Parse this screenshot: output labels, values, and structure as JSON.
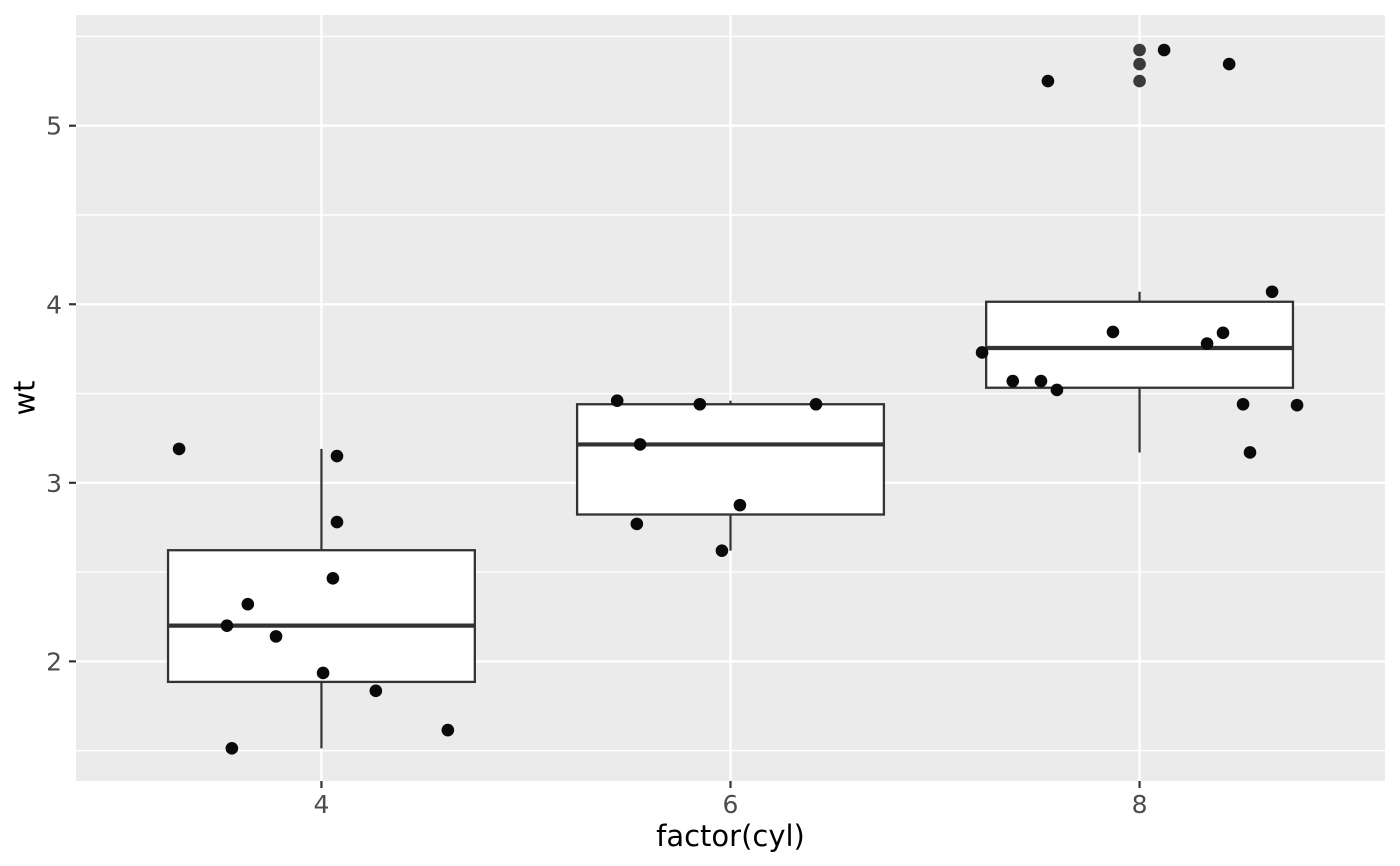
{
  "chart_data": {
    "type": "boxplot",
    "title": "",
    "xlabel": "factor(cyl)",
    "ylabel": "wt",
    "x_domain": [
      0.4,
      3.6
    ],
    "y_domain": [
      1.33,
      5.62
    ],
    "x_ticks": [
      {
        "pos": 1,
        "label": "4"
      },
      {
        "pos": 2,
        "label": "6"
      },
      {
        "pos": 3,
        "label": "8"
      }
    ],
    "y_ticks": [
      {
        "pos": 2,
        "label": "2"
      },
      {
        "pos": 3,
        "label": "3"
      },
      {
        "pos": 4,
        "label": "4"
      },
      {
        "pos": 5,
        "label": "5"
      }
    ],
    "y_minor": [
      1.5,
      2.5,
      3.5,
      4.5,
      5.5
    ],
    "box_half_width": 0.375,
    "grid": true,
    "legend": "none",
    "groups": [
      {
        "label": "4",
        "pos": 1,
        "q1": 1.885,
        "median": 2.2,
        "q3": 2.6225,
        "whisker_low": 1.513,
        "whisker_high": 3.19,
        "outliers": [],
        "points": [
          {
            "wt": 3.19,
            "dx": -0.348
          },
          {
            "wt": 3.15,
            "dx": 0.038
          },
          {
            "wt": 2.78,
            "dx": 0.038
          },
          {
            "wt": 2.465,
            "dx": 0.028
          },
          {
            "wt": 2.32,
            "dx": -0.18
          },
          {
            "wt": 2.2,
            "dx": -0.231
          },
          {
            "wt": 2.14,
            "dx": -0.111
          },
          {
            "wt": 1.935,
            "dx": 0.004
          },
          {
            "wt": 1.835,
            "dx": 0.133
          },
          {
            "wt": 1.615,
            "dx": 0.309
          },
          {
            "wt": 1.513,
            "dx": -0.219
          }
        ]
      },
      {
        "label": "6",
        "pos": 2,
        "q1": 2.8225,
        "median": 3.215,
        "q3": 3.44,
        "whisker_low": 2.62,
        "whisker_high": 3.46,
        "outliers": [],
        "points": [
          {
            "wt": 3.46,
            "dx": -0.277
          },
          {
            "wt": 3.44,
            "dx": -0.075
          },
          {
            "wt": 3.44,
            "dx": 0.209
          },
          {
            "wt": 3.215,
            "dx": -0.221
          },
          {
            "wt": 2.875,
            "dx": 0.023
          },
          {
            "wt": 2.77,
            "dx": -0.229
          },
          {
            "wt": 2.62,
            "dx": -0.021
          }
        ]
      },
      {
        "label": "8",
        "pos": 3,
        "q1": 3.5325,
        "median": 3.755,
        "q3": 4.014,
        "whisker_low": 3.17,
        "whisker_high": 4.07,
        "outliers": [
          5.25,
          5.345,
          5.424
        ],
        "points": [
          {
            "wt": 5.424,
            "dx": 0.06
          },
          {
            "wt": 5.345,
            "dx": 0.219
          },
          {
            "wt": 5.25,
            "dx": -0.224
          },
          {
            "wt": 4.07,
            "dx": 0.324
          },
          {
            "wt": 3.845,
            "dx": -0.065
          },
          {
            "wt": 3.84,
            "dx": 0.204
          },
          {
            "wt": 3.78,
            "dx": 0.165
          },
          {
            "wt": 3.73,
            "dx": -0.385
          },
          {
            "wt": 3.57,
            "dx": -0.31
          },
          {
            "wt": 3.57,
            "dx": -0.241
          },
          {
            "wt": 3.52,
            "dx": -0.202
          },
          {
            "wt": 3.44,
            "dx": 0.253
          },
          {
            "wt": 3.435,
            "dx": 0.385
          },
          {
            "wt": 3.17,
            "dx": 0.27
          }
        ]
      }
    ],
    "colors": {
      "background": "#FFFFFF",
      "panel": "#EBEBEB",
      "grid": "#FFFFFF",
      "box_stroke": "#333333",
      "box_fill": "#FFFFFF",
      "median": "#333333",
      "whisker": "#333333",
      "jitter_point": "#0A0A0A",
      "outlier_point": "#3A3A3A",
      "tick_mark": "#333333",
      "tick_label": "#4D4D4D",
      "axis_title": "#000000"
    }
  }
}
